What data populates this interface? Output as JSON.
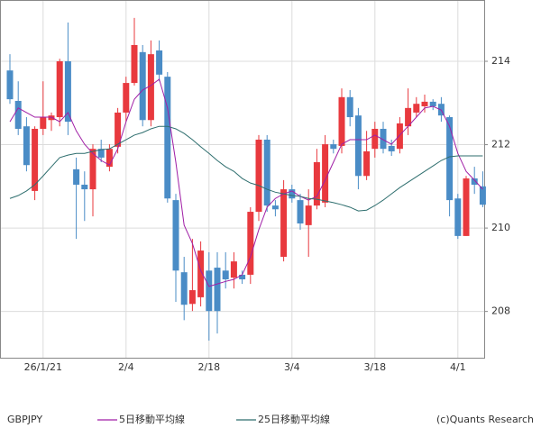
{
  "chart_data": {
    "type": "candlestick",
    "symbol": "GBPJPY",
    "credit": "(c)Quants Research",
    "categories": [
      null,
      null,
      null,
      null,
      "26/1/21",
      null,
      null,
      null,
      null,
      null,
      null,
      null,
      null,
      null,
      "2/4",
      null,
      null,
      null,
      null,
      null,
      null,
      null,
      null,
      null,
      "2/18",
      null,
      null,
      null,
      null,
      null,
      null,
      null,
      null,
      null,
      "3/4",
      null,
      null,
      null,
      null,
      null,
      null,
      null,
      null,
      null,
      "3/18",
      null,
      null,
      null,
      null,
      null,
      null,
      null,
      null,
      null,
      "4/1",
      null,
      null,
      null
    ],
    "open": [
      213.78,
      213.05,
      212.44,
      210.89,
      212.38,
      212.59,
      212.66,
      214.0,
      211.41,
      211.04,
      210.93,
      211.9,
      211.47,
      211.95,
      212.77,
      213.48,
      214.22,
      212.59,
      214.26,
      213.63,
      210.67,
      208.94,
      208.18,
      208.34,
      208.98,
      209.05,
      208.98,
      208.81,
      208.88,
      208.88,
      210.39,
      212.12,
      210.54,
      209.31,
      210.93,
      210.67,
      210.07,
      210.54,
      210.61,
      212.01,
      211.97,
      213.14,
      212.7,
      211.25,
      211.9,
      212.38,
      211.97,
      211.9,
      212.44,
      212.77,
      212.92,
      213.03,
      212.98,
      212.66,
      210.71,
      209.81,
      211.19,
      211.0
    ],
    "high": [
      214.17,
      213.52,
      212.66,
      212.44,
      213.52,
      212.77,
      214.06,
      214.93,
      211.69,
      211.36,
      212.01,
      212.12,
      212.01,
      212.88,
      213.63,
      215.04,
      214.39,
      214.5,
      214.5,
      213.74,
      210.82,
      209.31,
      209.74,
      209.68,
      209.42,
      209.42,
      209.42,
      209.42,
      208.98,
      210.5,
      212.23,
      212.23,
      210.67,
      211.15,
      211.04,
      210.82,
      210.93,
      211.9,
      212.23,
      212.12,
      213.35,
      213.31,
      212.88,
      212.33,
      212.55,
      212.55,
      212.12,
      212.66,
      213.35,
      213.14,
      213.2,
      213.09,
      213.14,
      212.7,
      210.82,
      211.25,
      211.47,
      211.36
    ],
    "low": [
      212.98,
      212.23,
      211.36,
      210.67,
      212.23,
      212.33,
      212.44,
      212.23,
      209.74,
      210.17,
      210.28,
      211.58,
      211.36,
      211.79,
      212.55,
      213.42,
      212.44,
      212.44,
      213.52,
      210.61,
      208.23,
      207.79,
      208.01,
      208.12,
      207.3,
      207.47,
      208.55,
      208.55,
      208.66,
      208.66,
      210.17,
      210.39,
      210.28,
      209.2,
      210.61,
      209.96,
      209.31,
      210.45,
      210.5,
      211.79,
      211.79,
      212.44,
      210.93,
      211.15,
      211.69,
      211.79,
      211.73,
      211.79,
      212.23,
      212.66,
      212.77,
      212.83,
      212.55,
      210.28,
      209.74,
      209.81,
      210.82,
      210.5
    ],
    "close": [
      213.09,
      212.38,
      211.51,
      212.38,
      212.66,
      212.7,
      214.0,
      212.55,
      211.04,
      210.93,
      211.9,
      211.69,
      211.9,
      212.77,
      213.48,
      214.39,
      212.59,
      214.17,
      213.68,
      210.71,
      208.98,
      208.16,
      208.51,
      209.46,
      208.01,
      208.01,
      208.77,
      209.2,
      208.77,
      210.39,
      212.12,
      210.54,
      210.45,
      210.93,
      210.71,
      210.11,
      210.54,
      211.58,
      212.01,
      211.9,
      213.14,
      212.66,
      211.25,
      211.84,
      212.38,
      211.9,
      211.84,
      212.51,
      212.88,
      212.98,
      213.03,
      212.92,
      212.7,
      210.67,
      209.81,
      211.19,
      211.04,
      210.56
    ],
    "up_color": "#e8393e",
    "down_color": "#4a8cc6",
    "series": [
      {
        "name": "5日移動平均線",
        "color": "#a01fa6",
        "values": [
          212.55,
          212.88,
          212.77,
          212.66,
          212.66,
          212.66,
          212.55,
          212.77,
          212.33,
          212.01,
          211.79,
          211.62,
          211.51,
          211.9,
          212.55,
          213.09,
          213.31,
          213.42,
          213.57,
          212.88,
          211.58,
          210.07,
          209.63,
          208.98,
          208.6,
          208.66,
          208.72,
          208.77,
          208.88,
          209.31,
          209.96,
          210.5,
          210.71,
          210.82,
          210.89,
          210.76,
          210.67,
          210.76,
          211.15,
          211.58,
          212.01,
          212.12,
          212.12,
          212.12,
          212.23,
          212.12,
          212.01,
          212.23,
          212.44,
          212.66,
          212.88,
          212.92,
          212.83,
          212.44,
          211.79,
          211.36,
          211.15,
          210.93
        ]
      },
      {
        "name": "25日移動平均線",
        "color": "#2e6e6e",
        "values": [
          210.71,
          210.78,
          210.89,
          211.04,
          211.25,
          211.47,
          211.69,
          211.75,
          211.79,
          211.79,
          211.84,
          211.88,
          211.9,
          212.01,
          212.12,
          212.23,
          212.29,
          212.38,
          212.44,
          212.44,
          212.38,
          212.27,
          212.12,
          211.95,
          211.79,
          211.62,
          211.47,
          211.36,
          211.19,
          211.08,
          211.02,
          210.93,
          210.86,
          210.82,
          210.78,
          210.76,
          210.71,
          210.69,
          210.65,
          210.61,
          210.56,
          210.5,
          210.41,
          210.43,
          210.54,
          210.67,
          210.82,
          210.97,
          211.1,
          211.23,
          211.36,
          211.49,
          211.62,
          211.71,
          211.73,
          211.73,
          211.73,
          211.73
        ]
      }
    ],
    "ylim": [
      206.89,
      215.47
    ],
    "yticks": [
      208,
      210,
      212,
      214
    ],
    "grid": true
  }
}
